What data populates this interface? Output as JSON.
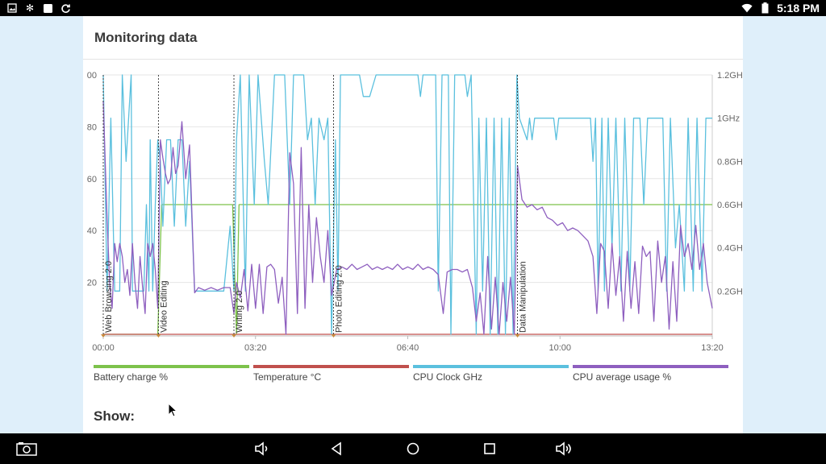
{
  "statusbar": {
    "time": "5:18 PM",
    "left_icons": [
      "image-icon",
      "snowflake-icon",
      "square-icon",
      "sync-icon"
    ],
    "right_icons": [
      "wifi-icon",
      "battery-icon"
    ]
  },
  "card": {
    "title": "Monitoring data",
    "show_label": "Show:"
  },
  "chart_data": {
    "type": "line",
    "x_ticks": [
      "00:00",
      "03:20",
      "06:40",
      "10:00",
      "13:20"
    ],
    "x_range_seconds": [
      0,
      48000
    ],
    "y_left_ticks": [
      "00",
      "80",
      "60",
      "40",
      "20"
    ],
    "y_left_range": [
      0,
      100
    ],
    "y_right_ticks": [
      "1.2GH",
      "1GHz",
      "0.8GH",
      "0.6GH",
      "0.4GH",
      "0.2GH"
    ],
    "y_right_range_ghz": [
      0,
      1.2
    ],
    "grid": true,
    "markers": [
      {
        "label": "Web Browsing 2.0",
        "t": 0
      },
      {
        "label": "Video Editing",
        "t": 4350
      },
      {
        "label": "Writing 2.0",
        "t": 10300
      },
      {
        "label": "Photo Editing 2.0",
        "t": 18150
      },
      {
        "label": "Data Manipulation",
        "t": 32650
      }
    ],
    "series": [
      {
        "name": "Battery charge %",
        "color": "#7dc24b",
        "points": [
          [
            0,
            0
          ],
          [
            4300,
            0
          ],
          [
            4600,
            50
          ],
          [
            10200,
            50
          ],
          [
            10500,
            0
          ],
          [
            10700,
            50
          ],
          [
            48000,
            50
          ]
        ]
      },
      {
        "name": "Temperature °C",
        "color": "#c0504d",
        "points": [
          [
            0,
            0
          ],
          [
            48000,
            0
          ]
        ]
      },
      {
        "name": "CPU Clock GHz",
        "color": "#5bc0de",
        "points": [
          [
            0,
            1.2
          ],
          [
            300,
            0.2
          ],
          [
            600,
            1.0
          ],
          [
            900,
            0.2
          ],
          [
            1300,
            0.2
          ],
          [
            1500,
            1.2
          ],
          [
            1800,
            0.8
          ],
          [
            2200,
            1.2
          ],
          [
            2300,
            0.2
          ],
          [
            3200,
            0.2
          ],
          [
            3400,
            0.6
          ],
          [
            3600,
            0.2
          ],
          [
            3700,
            0.9
          ],
          [
            3900,
            0.2
          ],
          [
            4100,
            0.6
          ],
          [
            4300,
            0.9
          ],
          [
            4500,
            0.8
          ],
          [
            4700,
            0.5
          ],
          [
            5000,
            0.9
          ],
          [
            5300,
            0.9
          ],
          [
            5600,
            0.5
          ],
          [
            5900,
            0.9
          ],
          [
            6200,
            0.9
          ],
          [
            6500,
            0.5
          ],
          [
            6800,
            0.8
          ],
          [
            7200,
            0.2
          ],
          [
            8000,
            0.2
          ],
          [
            8500,
            0.2
          ],
          [
            9000,
            0.2
          ],
          [
            9500,
            0.2
          ],
          [
            10000,
            0.5
          ],
          [
            10300,
            0.2
          ],
          [
            10500,
            0.9
          ],
          [
            10800,
            1.2
          ],
          [
            11200,
            0.2
          ],
          [
            11500,
            1.2
          ],
          [
            11900,
            0.6
          ],
          [
            12200,
            1.2
          ],
          [
            12700,
            0.8
          ],
          [
            13000,
            0.6
          ],
          [
            13500,
            1.2
          ],
          [
            14000,
            1.2
          ],
          [
            14300,
            1.2
          ],
          [
            14700,
            0.6
          ],
          [
            15000,
            1.2
          ],
          [
            15800,
            1.2
          ],
          [
            16100,
            0.9
          ],
          [
            16400,
            1.0
          ],
          [
            16700,
            0.6
          ],
          [
            17000,
            1.0
          ],
          [
            17400,
            0.9
          ],
          [
            17700,
            1.0
          ],
          [
            18000,
            0.0
          ],
          [
            18300,
            0.9
          ],
          [
            18500,
            0.2
          ],
          [
            18700,
            1.2
          ],
          [
            19500,
            1.2
          ],
          [
            20200,
            1.2
          ],
          [
            20500,
            1.1
          ],
          [
            21000,
            1.1
          ],
          [
            21500,
            1.2
          ],
          [
            24800,
            1.2
          ],
          [
            25000,
            1.1
          ],
          [
            25200,
            1.2
          ],
          [
            26200,
            1.2
          ],
          [
            26400,
            0.2
          ],
          [
            26700,
            1.2
          ],
          [
            27200,
            1.2
          ],
          [
            27400,
            0.0
          ],
          [
            27700,
            1.2
          ],
          [
            28500,
            1.2
          ],
          [
            28700,
            1.1
          ],
          [
            29000,
            1.2
          ],
          [
            29400,
            0.0
          ],
          [
            29600,
            1.0
          ],
          [
            29900,
            0.2
          ],
          [
            30200,
            1.0
          ],
          [
            30500,
            0.0
          ],
          [
            30800,
            1.0
          ],
          [
            31100,
            0.0
          ],
          [
            31400,
            1.0
          ],
          [
            31700,
            0.0
          ],
          [
            32000,
            1.0
          ],
          [
            32300,
            0.0
          ],
          [
            32600,
            1.2
          ],
          [
            32800,
            1.0
          ],
          [
            33400,
            0.9
          ],
          [
            33600,
            1.0
          ],
          [
            33800,
            0.9
          ],
          [
            34000,
            1.0
          ],
          [
            35500,
            1.0
          ],
          [
            35700,
            0.9
          ],
          [
            35900,
            1.0
          ],
          [
            38400,
            1.0
          ],
          [
            38600,
            0.8
          ],
          [
            38800,
            1.0
          ],
          [
            39000,
            0.2
          ],
          [
            39300,
            1.0
          ],
          [
            39500,
            0.2
          ],
          [
            39800,
            1.0
          ],
          [
            40100,
            0.4
          ],
          [
            40400,
            1.0
          ],
          [
            40800,
            0.2
          ],
          [
            41100,
            1.0
          ],
          [
            41500,
            0.2
          ],
          [
            41800,
            1.0
          ],
          [
            42300,
            1.0
          ],
          [
            42600,
            0.6
          ],
          [
            42900,
            1.0
          ],
          [
            44100,
            1.0
          ],
          [
            44400,
            0.2
          ],
          [
            44700,
            1.0
          ],
          [
            45100,
            0.4
          ],
          [
            45400,
            0.6
          ],
          [
            45800,
            0.2
          ],
          [
            46100,
            1.0
          ],
          [
            46500,
            0.2
          ],
          [
            46800,
            1.0
          ],
          [
            47200,
            0.2
          ],
          [
            47500,
            1.0
          ],
          [
            48000,
            1.0
          ]
        ]
      },
      {
        "name": "CPU average usage %",
        "color": "#8e5fbf",
        "points": [
          [
            0,
            90
          ],
          [
            300,
            45
          ],
          [
            500,
            20
          ],
          [
            700,
            10
          ],
          [
            900,
            35
          ],
          [
            1100,
            28
          ],
          [
            1300,
            35
          ],
          [
            1500,
            30
          ],
          [
            1700,
            20
          ],
          [
            1900,
            25
          ],
          [
            2100,
            15
          ],
          [
            2300,
            35
          ],
          [
            2500,
            20
          ],
          [
            2700,
            10
          ],
          [
            2900,
            30
          ],
          [
            3100,
            18
          ],
          [
            3300,
            8
          ],
          [
            3500,
            35
          ],
          [
            3700,
            30
          ],
          [
            3900,
            35
          ],
          [
            4100,
            25
          ],
          [
            4300,
            10
          ],
          [
            4500,
            75
          ],
          [
            4700,
            68
          ],
          [
            4900,
            62
          ],
          [
            5100,
            58
          ],
          [
            5300,
            60
          ],
          [
            5500,
            72
          ],
          [
            5700,
            62
          ],
          [
            5900,
            65
          ],
          [
            6200,
            82
          ],
          [
            6500,
            60
          ],
          [
            6800,
            73
          ],
          [
            7200,
            16
          ],
          [
            7500,
            18
          ],
          [
            8000,
            17
          ],
          [
            8500,
            18
          ],
          [
            9000,
            17
          ],
          [
            9500,
            18
          ],
          [
            10000,
            18
          ],
          [
            10300,
            8
          ],
          [
            10500,
            20
          ],
          [
            10800,
            14
          ],
          [
            11100,
            25
          ],
          [
            11400,
            9
          ],
          [
            11700,
            27
          ],
          [
            12000,
            10
          ],
          [
            12300,
            27
          ],
          [
            12600,
            8
          ],
          [
            12900,
            26
          ],
          [
            13200,
            27
          ],
          [
            13500,
            25
          ],
          [
            13800,
            12
          ],
          [
            14100,
            22
          ],
          [
            14400,
            0
          ],
          [
            14700,
            70
          ],
          [
            15000,
            58
          ],
          [
            15300,
            8
          ],
          [
            15600,
            72
          ],
          [
            15900,
            10
          ],
          [
            16200,
            50
          ],
          [
            16500,
            20
          ],
          [
            16800,
            45
          ],
          [
            17100,
            30
          ],
          [
            17400,
            20
          ],
          [
            17700,
            40
          ],
          [
            18000,
            15
          ],
          [
            18400,
            25
          ],
          [
            18800,
            26
          ],
          [
            19200,
            25
          ],
          [
            19600,
            27
          ],
          [
            20000,
            25
          ],
          [
            20400,
            26
          ],
          [
            20800,
            27
          ],
          [
            21200,
            25
          ],
          [
            21600,
            26
          ],
          [
            22000,
            25
          ],
          [
            22400,
            26
          ],
          [
            22800,
            25
          ],
          [
            23200,
            27
          ],
          [
            23600,
            25
          ],
          [
            24000,
            26
          ],
          [
            24400,
            25
          ],
          [
            24800,
            27
          ],
          [
            25200,
            25
          ],
          [
            25600,
            26
          ],
          [
            26000,
            25
          ],
          [
            26400,
            23
          ],
          [
            26800,
            8
          ],
          [
            27100,
            24
          ],
          [
            27500,
            25
          ],
          [
            27900,
            25
          ],
          [
            28300,
            24
          ],
          [
            28700,
            25
          ],
          [
            29100,
            18
          ],
          [
            29400,
            5
          ],
          [
            29700,
            16
          ],
          [
            30000,
            0
          ],
          [
            30300,
            30
          ],
          [
            30600,
            2
          ],
          [
            30900,
            22
          ],
          [
            31200,
            0
          ],
          [
            31500,
            20
          ],
          [
            31800,
            5
          ],
          [
            32100,
            22
          ],
          [
            32400,
            0
          ],
          [
            32650,
            65
          ],
          [
            33000,
            52
          ],
          [
            33400,
            49
          ],
          [
            33800,
            50
          ],
          [
            34200,
            48
          ],
          [
            34600,
            49
          ],
          [
            35000,
            45
          ],
          [
            35400,
            44
          ],
          [
            35800,
            42
          ],
          [
            36200,
            43
          ],
          [
            36600,
            40
          ],
          [
            37000,
            41
          ],
          [
            37400,
            40
          ],
          [
            37800,
            38
          ],
          [
            38200,
            36
          ],
          [
            38600,
            30
          ],
          [
            38900,
            8
          ],
          [
            39200,
            35
          ],
          [
            39500,
            32
          ],
          [
            39800,
            10
          ],
          [
            40100,
            35
          ],
          [
            40400,
            15
          ],
          [
            40700,
            30
          ],
          [
            41000,
            5
          ],
          [
            41300,
            32
          ],
          [
            41600,
            10
          ],
          [
            41900,
            28
          ],
          [
            42200,
            8
          ],
          [
            42500,
            34
          ],
          [
            42800,
            30
          ],
          [
            43100,
            32
          ],
          [
            43400,
            5
          ],
          [
            43700,
            36
          ],
          [
            44000,
            20
          ],
          [
            44300,
            30
          ],
          [
            44600,
            2
          ],
          [
            44900,
            28
          ],
          [
            45200,
            5
          ],
          [
            45500,
            42
          ],
          [
            45800,
            30
          ],
          [
            46100,
            35
          ],
          [
            46400,
            25
          ],
          [
            46700,
            42
          ],
          [
            47000,
            25
          ],
          [
            47300,
            35
          ],
          [
            47600,
            20
          ],
          [
            48000,
            10
          ]
        ]
      }
    ]
  },
  "legend": [
    {
      "label": "Battery charge %",
      "color": "#7dc24b"
    },
    {
      "label": "Temperature °C",
      "color": "#c0504d"
    },
    {
      "label": "CPU Clock GHz",
      "color": "#5bc0de"
    },
    {
      "label": "CPU average usage %",
      "color": "#8e5fbf"
    }
  ],
  "navbar": {
    "buttons": [
      "screenshot-icon",
      "volume-down-icon",
      "back-icon",
      "home-icon",
      "recents-icon",
      "volume-up-icon"
    ]
  }
}
